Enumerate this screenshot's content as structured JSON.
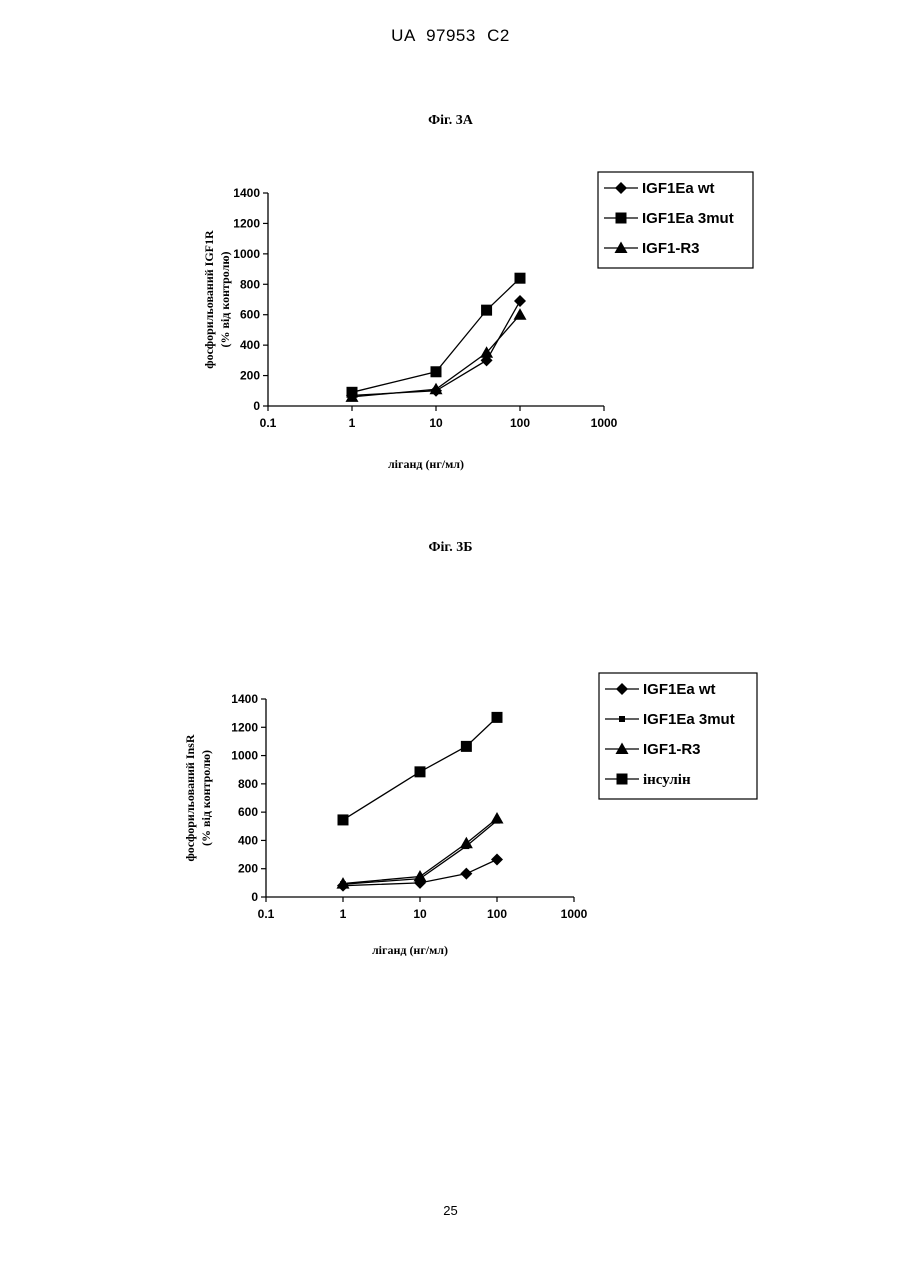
{
  "page": {
    "header": "UA 97953 C2",
    "page_number": "25"
  },
  "chart_data": [
    {
      "type": "line",
      "figure_label": "Фіг. 3А",
      "xlabel": "ліганд (нг/мл)",
      "ylabel": "фосфорильований IGF1R",
      "ylabel_sub": "(% від контролю)",
      "x_scale": "log",
      "xlim": [
        0.1,
        1000
      ],
      "ylim": [
        0,
        1400
      ],
      "x_ticks": [
        "0.1",
        "1",
        "10",
        "100",
        "1000"
      ],
      "x_tick_values": [
        0.1,
        1,
        10,
        100,
        1000
      ],
      "y_ticks": [
        "0",
        "200",
        "400",
        "600",
        "800",
        "1000",
        "1200",
        "1400"
      ],
      "y_tick_values": [
        0,
        200,
        400,
        600,
        800,
        1000,
        1200,
        1400
      ],
      "legend_position": "top-right",
      "grid": false,
      "series": [
        {
          "name": "IGF1Ea wt",
          "marker": "diamond",
          "x": [
            1,
            10,
            40,
            100
          ],
          "y": [
            70,
            100,
            300,
            690
          ]
        },
        {
          "name": "IGF1Ea 3mut",
          "marker": "square",
          "x": [
            1,
            10,
            40,
            100
          ],
          "y": [
            90,
            225,
            630,
            840
          ]
        },
        {
          "name": "IGF1-R3",
          "marker": "triangle",
          "x": [
            1,
            10,
            40,
            100
          ],
          "y": [
            60,
            110,
            350,
            600
          ]
        }
      ]
    },
    {
      "type": "line",
      "figure_label": "Фіг. 3Б",
      "xlabel": "ліганд (нг/мл)",
      "ylabel": "фосфорильований InsR",
      "ylabel_sub": "(% від контролю)",
      "x_scale": "log",
      "xlim": [
        0.1,
        1000
      ],
      "ylim": [
        0,
        1400
      ],
      "x_ticks": [
        "0.1",
        "1",
        "10",
        "100",
        "1000"
      ],
      "x_tick_values": [
        0.1,
        1,
        10,
        100,
        1000
      ],
      "y_ticks": [
        "0",
        "200",
        "400",
        "600",
        "800",
        "1000",
        "1200",
        "1400"
      ],
      "y_tick_values": [
        0,
        200,
        400,
        600,
        800,
        1000,
        1200,
        1400
      ],
      "legend_position": "top-right",
      "grid": false,
      "series": [
        {
          "name": "IGF1Ea wt",
          "marker": "diamond",
          "x": [
            1,
            10,
            40,
            100
          ],
          "y": [
            80,
            100,
            165,
            265
          ]
        },
        {
          "name": "IGF1Ea 3mut",
          "marker": "small-square",
          "x": [
            1,
            10,
            40,
            100
          ],
          "y": [
            90,
            130,
            360,
            540
          ]
        },
        {
          "name": "IGF1-R3",
          "marker": "triangle",
          "x": [
            1,
            10,
            40,
            100
          ],
          "y": [
            95,
            145,
            380,
            555
          ]
        },
        {
          "name": "інсулін",
          "marker": "square",
          "x": [
            1,
            10,
            40,
            100
          ],
          "y": [
            545,
            885,
            1065,
            1270
          ]
        }
      ]
    }
  ]
}
